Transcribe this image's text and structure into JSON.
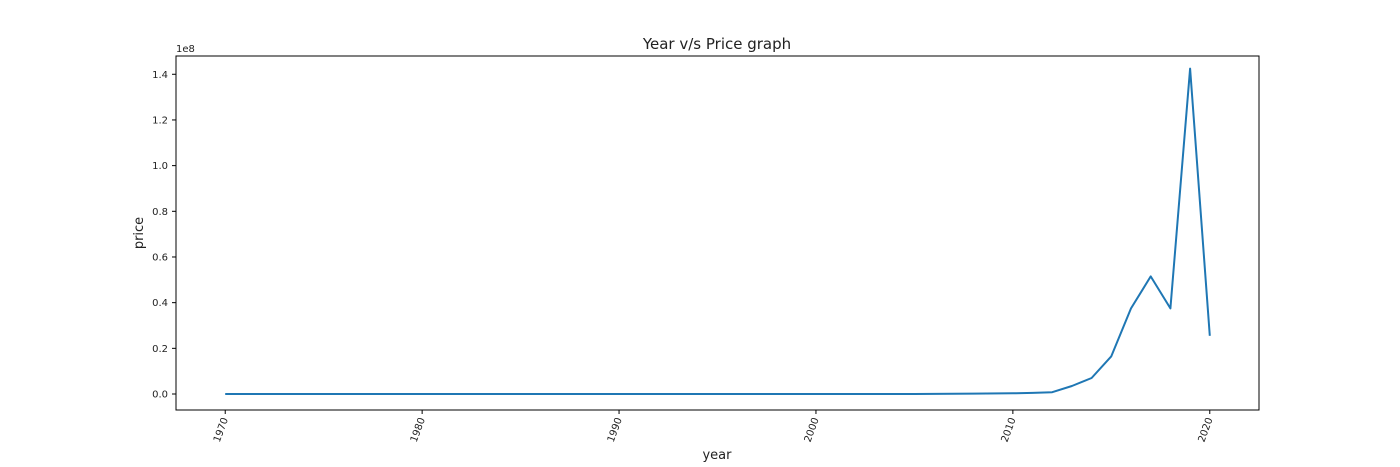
{
  "chart_data": {
    "type": "line",
    "title": "Year v/s Price graph",
    "xlabel": "year",
    "ylabel": "price",
    "y_offset_label": "1e8",
    "xlim": [
      1967.5,
      2022.5
    ],
    "ylim": [
      -0.07,
      1.48
    ],
    "x_ticks": [
      1970,
      1980,
      1990,
      2000,
      2010,
      2020
    ],
    "x_tick_labels": [
      "1970",
      "1980",
      "1990",
      "2000",
      "2010",
      "2020"
    ],
    "x_tick_rotation_deg": -70,
    "y_ticks": [
      0.0,
      0.2,
      0.4,
      0.6,
      0.8,
      1.0,
      1.2,
      1.4
    ],
    "y_tick_labels": [
      "0.0",
      "0.2",
      "0.4",
      "0.6",
      "0.8",
      "1.0",
      "1.2",
      "1.4"
    ],
    "grid": false,
    "line_color": "#1f77b4",
    "series": [
      {
        "x": [
          1970,
          1980,
          1990,
          2000,
          2005,
          2008,
          2010,
          2011,
          2012,
          2013,
          2014,
          2015,
          2016,
          2017,
          2018,
          2019,
          2020
        ],
        "y": [
          0.0,
          0.0,
          0.0,
          0.0,
          0.0,
          0.002,
          0.003,
          0.005,
          0.008,
          0.035,
          0.07,
          0.165,
          0.375,
          0.515,
          0.375,
          1.425,
          0.255
        ]
      }
    ]
  }
}
